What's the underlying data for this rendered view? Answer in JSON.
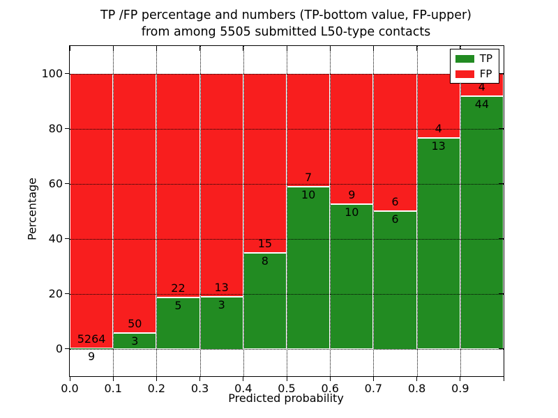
{
  "title": {
    "line1": "TP /FP percentage and numbers (TP-bottom value, FP-upper)",
    "line2": "from among 5505 submitted L50-type contacts"
  },
  "chart_data": {
    "type": "bar",
    "stacked": true,
    "normalized": "each bar scaled to 100%, annotation shows raw counts (TP bottom, FP upper)",
    "total_submitted_contacts": 5505,
    "categories": [
      "0.0-0.1",
      "0.1-0.2",
      "0.2-0.3",
      "0.3-0.4",
      "0.4-0.5",
      "0.5-0.6",
      "0.6-0.7",
      "0.7-0.8",
      "0.8-0.9",
      "0.9-1.0"
    ],
    "series": [
      {
        "name": "TP",
        "color": "#228b22",
        "counts": [
          9,
          3,
          5,
          3,
          8,
          10,
          10,
          6,
          13,
          44
        ]
      },
      {
        "name": "FP",
        "color": "#f81e1e",
        "counts": [
          5264,
          50,
          22,
          13,
          15,
          7,
          9,
          6,
          4,
          4
        ]
      }
    ],
    "tp_percent_of_bar": [
      0.17,
      5.66,
      18.52,
      18.75,
      34.78,
      58.82,
      52.63,
      50.0,
      76.47,
      91.67
    ],
    "xlabel": "Predicted probability",
    "ylabel": "Percentage",
    "x_tick_labels": [
      "0.0",
      "0.1",
      "0.2",
      "0.3",
      "0.4",
      "0.5",
      "0.6",
      "0.7",
      "0.8",
      "0.9"
    ],
    "y_tick_values": [
      0,
      20,
      40,
      60,
      80,
      100
    ],
    "xlim": [
      0.0,
      1.0
    ],
    "ylim": [
      -10,
      110
    ],
    "grid": "dotted black, vertical every 0.1 and horizontal every 20",
    "legend": {
      "position": "upper right",
      "entries": [
        {
          "label": "TP",
          "color": "#228b22"
        },
        {
          "label": "FP",
          "color": "#f81e1e"
        }
      ]
    }
  }
}
